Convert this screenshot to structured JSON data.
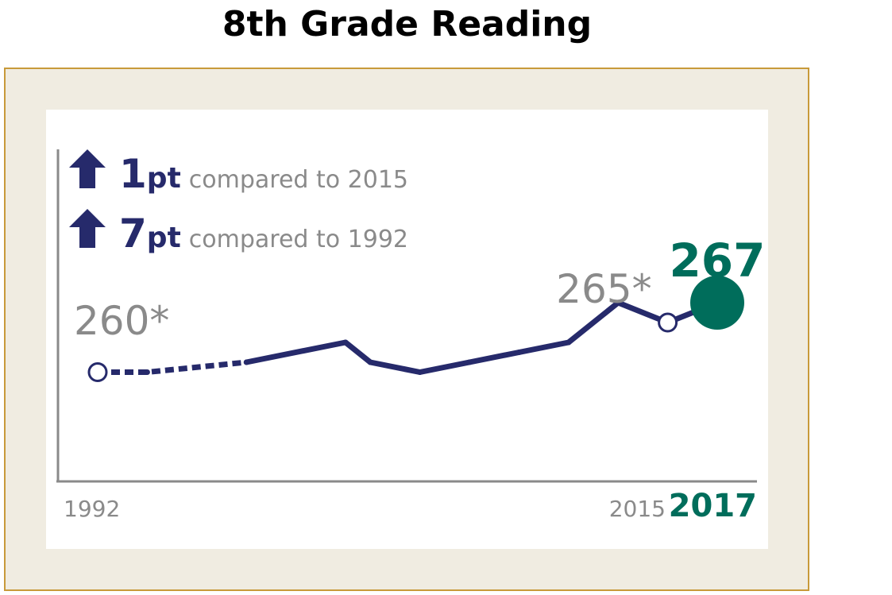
{
  "title": "8th Grade Reading",
  "colors": {
    "panel_bg": "#f0ece1",
    "panel_border": "#c89a3a",
    "navy": "#262a6b",
    "green": "#006d5b",
    "gray": "#8a8a8a",
    "axis": "#8a8a8a"
  },
  "icons": {
    "change_up": "arrow-up-icon"
  },
  "changes": [
    {
      "value": "1",
      "unit": "pt",
      "text": "compared to 2015",
      "direction": "up"
    },
    {
      "value": "7",
      "unit": "pt",
      "text": "compared to 1992",
      "direction": "up"
    }
  ],
  "chart_data": {
    "type": "line",
    "title": "8th Grade Reading",
    "xlabel": "",
    "ylabel": "",
    "x_tick_labels": [
      "1992",
      "2015",
      "2017"
    ],
    "xlim": [
      1992,
      2017
    ],
    "ylim": [
      249,
      277
    ],
    "grid": false,
    "series": [
      {
        "x": [
          1992,
          1994,
          1998,
          2002,
          2003,
          2005,
          2007,
          2009,
          2011,
          2013,
          2015,
          2017
        ],
        "y": [
          260,
          260,
          261,
          263,
          261,
          260,
          261,
          262,
          263,
          267,
          265,
          267
        ],
        "dashed_until_x": 1998
      }
    ],
    "annotations": [
      {
        "x": 1992,
        "label": "260*"
      },
      {
        "x": 2015,
        "label": "265*"
      },
      {
        "x": 2017,
        "label": "267"
      }
    ]
  }
}
